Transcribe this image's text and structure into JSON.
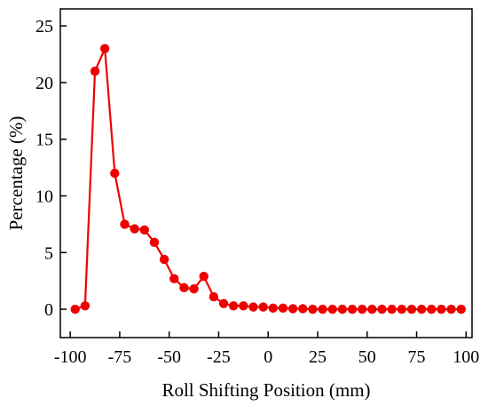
{
  "chart_data": {
    "type": "line",
    "title": "",
    "xlabel": "Roll Shifting Position (mm)",
    "ylabel": "Percentage (%)",
    "xlim": [
      -105,
      103
    ],
    "ylim": [
      -2.5,
      26.5
    ],
    "x_ticks": [
      -100,
      -75,
      -50,
      -25,
      0,
      25,
      50,
      75,
      100
    ],
    "x_tick_labels": [
      "-100",
      "-75",
      "-50",
      "-25",
      "0",
      "25",
      "50",
      "75",
      "100"
    ],
    "y_ticks": [
      0,
      5,
      10,
      15,
      20,
      25
    ],
    "y_tick_labels": [
      "0",
      "5",
      "10",
      "15",
      "20",
      "25"
    ],
    "grid": false,
    "legend": "none",
    "series": [
      {
        "color": "#ee0000",
        "marker": "circle",
        "x": [
          -97.5,
          -92.5,
          -87.5,
          -82.5,
          -77.5,
          -72.5,
          -67.5,
          -62.5,
          -57.5,
          -52.5,
          -47.5,
          -42.5,
          -37.5,
          -32.5,
          -27.5,
          -22.5,
          -17.5,
          -12.5,
          -7.5,
          -2.5,
          2.5,
          7.5,
          12.5,
          17.5,
          22.5,
          27.5,
          32.5,
          37.5,
          42.5,
          47.5,
          52.5,
          57.5,
          62.5,
          67.5,
          72.5,
          77.5,
          82.5,
          87.5,
          92.5,
          97.5
        ],
        "y": [
          0.0,
          0.3,
          21.0,
          23.0,
          12.0,
          7.5,
          7.1,
          7.0,
          5.9,
          4.4,
          2.7,
          1.9,
          1.8,
          2.9,
          1.1,
          0.5,
          0.3,
          0.3,
          0.2,
          0.2,
          0.1,
          0.1,
          0.05,
          0.05,
          0.0,
          0.0,
          0.0,
          0.0,
          0.0,
          0.0,
          0.0,
          0.0,
          0.0,
          0.0,
          0.0,
          0.0,
          0.0,
          0.0,
          0.0,
          0.0
        ]
      }
    ]
  }
}
